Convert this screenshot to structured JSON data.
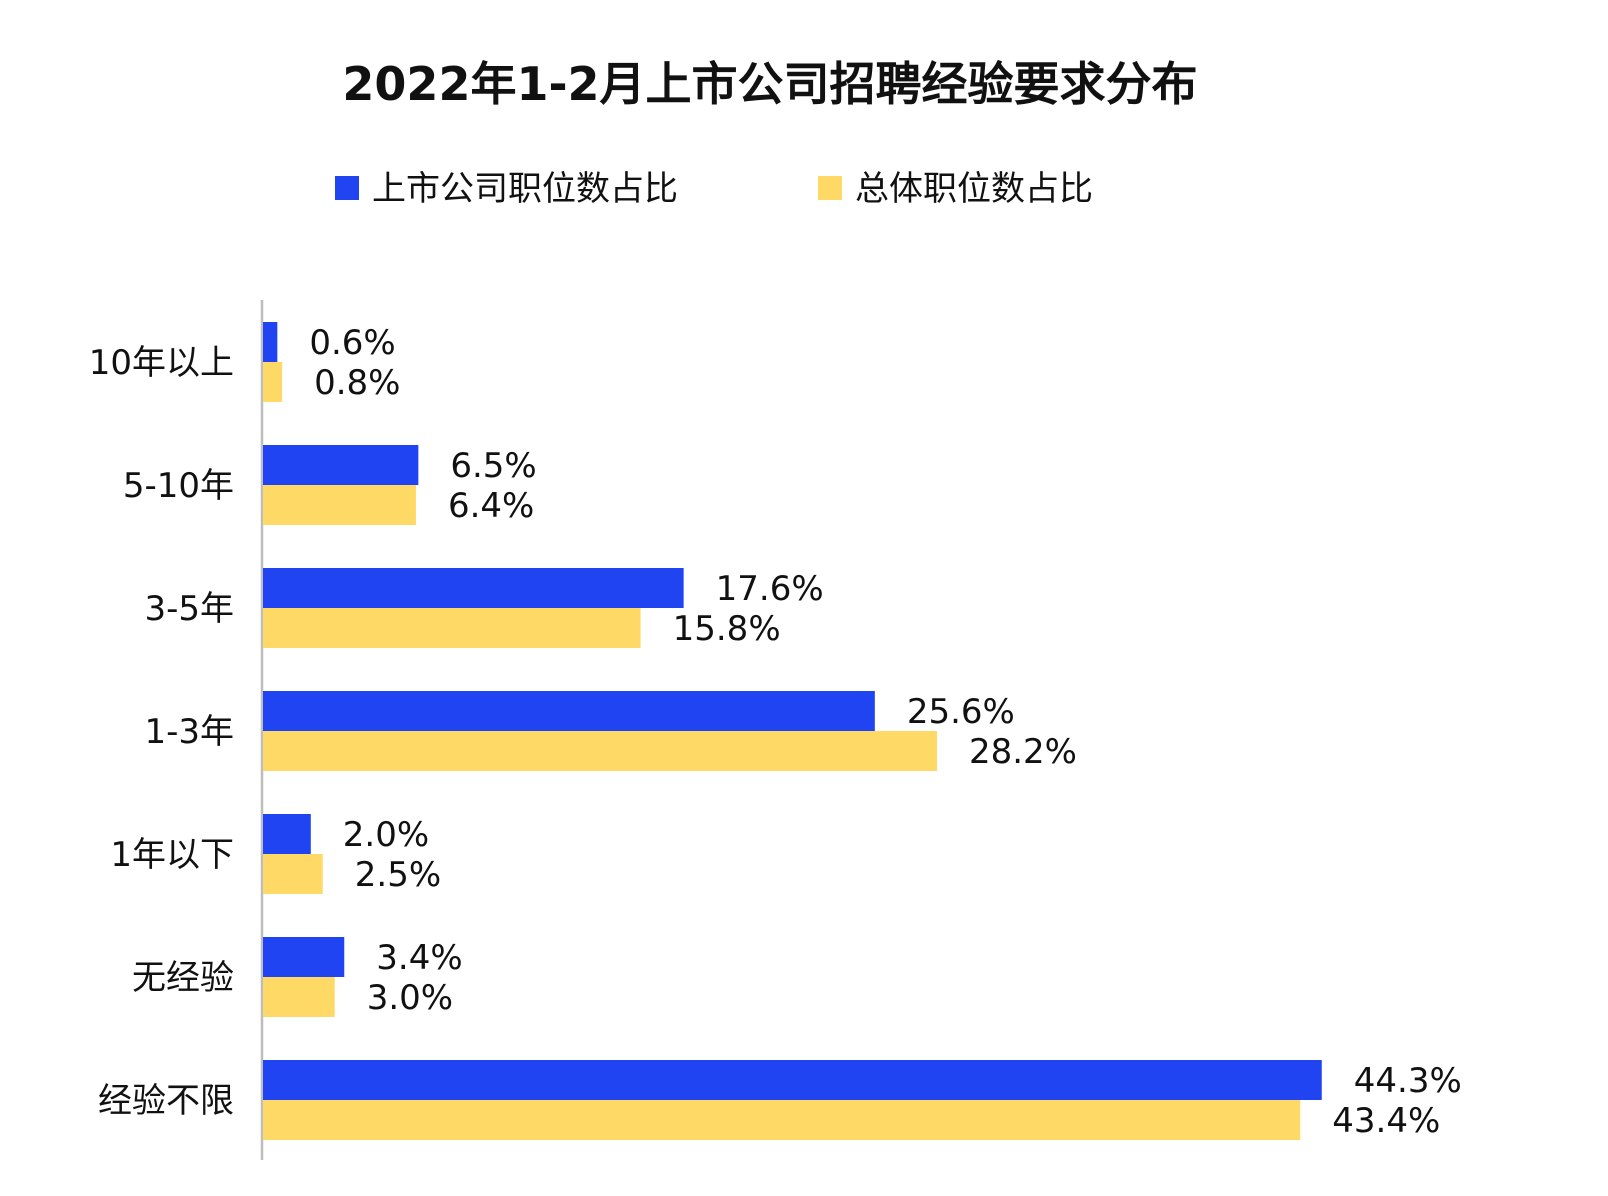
{
  "chart_data": {
    "type": "bar",
    "orientation": "horizontal",
    "title": "2022年1-2月上市公司招聘经验要求分布",
    "categories": [
      "10年以上",
      "5-10年",
      "3-5年",
      "1-3年",
      "1年以下",
      "无经验",
      "经验不限"
    ],
    "series": [
      {
        "name": "上市公司职位数占比",
        "color": "#2144F2",
        "values": [
          0.6,
          6.5,
          17.6,
          25.6,
          2.0,
          3.4,
          44.3
        ],
        "labels": [
          "0.6%",
          "6.5%",
          "17.6%",
          "25.6%",
          "2.0%",
          "3.4%",
          "44.3%"
        ]
      },
      {
        "name": "总体职位数占比",
        "color": "#FFD966",
        "values": [
          0.8,
          6.4,
          15.8,
          28.2,
          2.5,
          3.0,
          43.4
        ],
        "labels": [
          "0.8%",
          "6.4%",
          "15.8%",
          "28.2%",
          "2.5%",
          "3.0%",
          "43.4%"
        ]
      }
    ],
    "xlim": [
      0,
      45
    ],
    "legend_position": "top-center",
    "grid": false
  }
}
